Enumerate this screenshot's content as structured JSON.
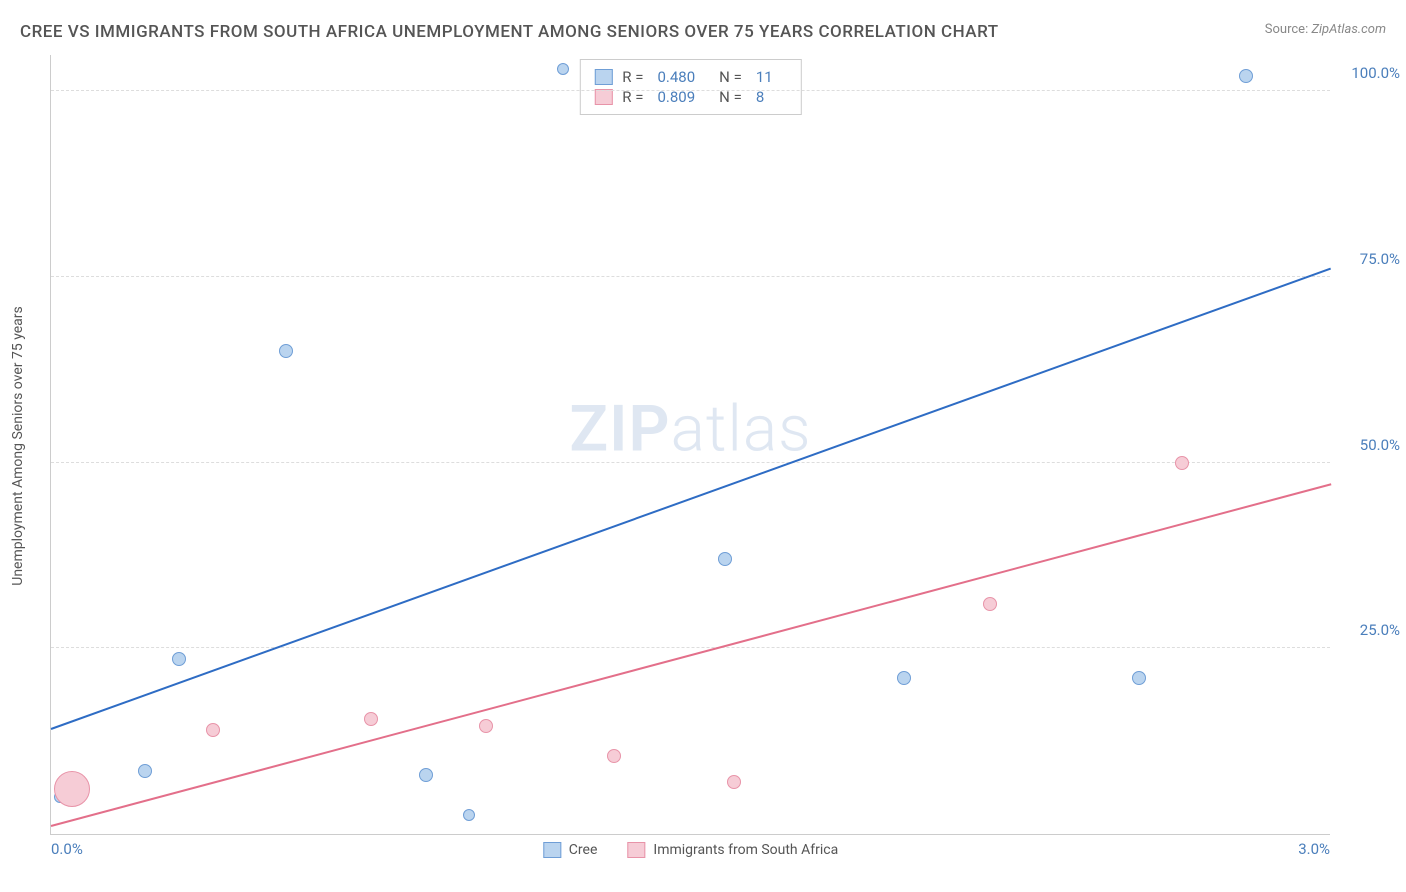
{
  "title": "CREE VS IMMIGRANTS FROM SOUTH AFRICA UNEMPLOYMENT AMONG SENIORS OVER 75 YEARS CORRELATION CHART",
  "source_label": "Source:",
  "source_value": "ZipAtlas.com",
  "ylabel": "Unemployment Among Seniors over 75 years",
  "watermark_a": "ZIP",
  "watermark_b": "atlas",
  "chart": {
    "type": "scatter",
    "xlim": [
      0.0,
      3.0
    ],
    "ylim": [
      0.0,
      105.0
    ],
    "x_ticks": [
      {
        "value": 0.0,
        "label": "0.0%"
      },
      {
        "value": 3.0,
        "label": "3.0%"
      }
    ],
    "y_ticks": [
      {
        "value": 25.0,
        "label": "25.0%"
      },
      {
        "value": 50.0,
        "label": "50.0%"
      },
      {
        "value": 75.0,
        "label": "75.0%"
      },
      {
        "value": 100.0,
        "label": "100.0%"
      }
    ],
    "background_color": "#ffffff",
    "grid_color": "#dddddd",
    "axis_color": "#cccccc",
    "tick_label_color": "#4a7ebb",
    "series": [
      {
        "name": "Cree",
        "fill_color": "#bad4ef",
        "stroke_color": "#6f9ed6",
        "line_color": "#2e6cc4",
        "r_value": "0.480",
        "n_value": "11",
        "trend": {
          "x1": 0.0,
          "y1": 14.0,
          "x2": 3.0,
          "y2": 76.0
        },
        "points": [
          {
            "x": 0.02,
            "y": 5.0,
            "size": 12
          },
          {
            "x": 0.22,
            "y": 8.5,
            "size": 14
          },
          {
            "x": 0.3,
            "y": 23.5,
            "size": 14
          },
          {
            "x": 0.55,
            "y": 65.0,
            "size": 14
          },
          {
            "x": 0.88,
            "y": 8.0,
            "size": 14
          },
          {
            "x": 0.98,
            "y": 2.5,
            "size": 12
          },
          {
            "x": 1.2,
            "y": 103.0,
            "size": 12
          },
          {
            "x": 1.58,
            "y": 37.0,
            "size": 14
          },
          {
            "x": 2.0,
            "y": 21.0,
            "size": 14
          },
          {
            "x": 2.55,
            "y": 21.0,
            "size": 14
          },
          {
            "x": 2.8,
            "y": 102.0,
            "size": 14
          }
        ]
      },
      {
        "name": "Immigrants from South Africa",
        "fill_color": "#f6ccd6",
        "stroke_color": "#e893a8",
        "line_color": "#e36f8a",
        "r_value": "0.809",
        "n_value": "8",
        "trend": {
          "x1": 0.0,
          "y1": 1.0,
          "x2": 3.0,
          "y2": 47.0
        },
        "points": [
          {
            "x": 0.05,
            "y": 6.0,
            "size": 36
          },
          {
            "x": 0.38,
            "y": 14.0,
            "size": 14
          },
          {
            "x": 0.75,
            "y": 15.5,
            "size": 14
          },
          {
            "x": 1.02,
            "y": 14.5,
            "size": 14
          },
          {
            "x": 1.32,
            "y": 10.5,
            "size": 14
          },
          {
            "x": 1.6,
            "y": 7.0,
            "size": 14
          },
          {
            "x": 2.2,
            "y": 31.0,
            "size": 14
          },
          {
            "x": 2.65,
            "y": 50.0,
            "size": 14
          }
        ]
      }
    ]
  },
  "legend_top_label_r": "R =",
  "legend_top_label_n": "N ="
}
